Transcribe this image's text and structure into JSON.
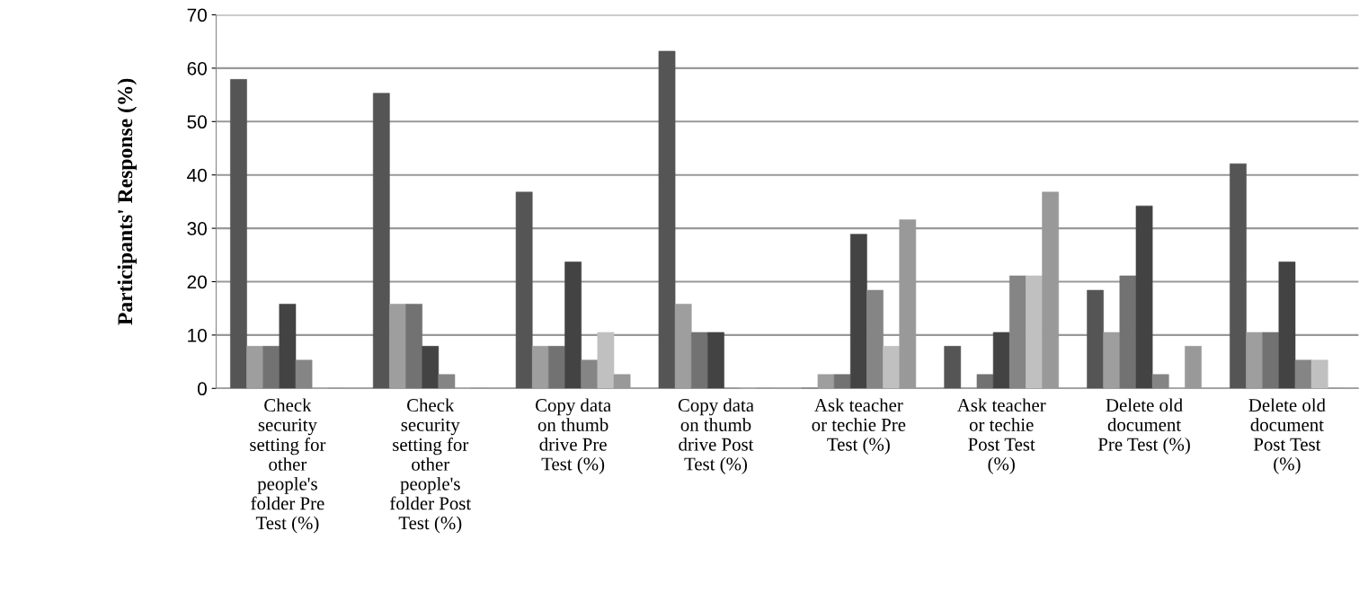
{
  "chart_data": {
    "type": "bar",
    "ylabel": "Participants' Response (%)",
    "categories": [
      "Check\nsecurity\nsetting for\nother\npeople's\nfolder Pre\nTest (%)",
      "Check\nsecurity\nsetting for\nother\npeople's\nfolder Post\nTest (%)",
      "Copy data\non thumb\ndrive Pre\nTest (%)",
      "Copy data\non thumb\ndrive Post\nTest (%)",
      "Ask teacher\nor techie Pre\nTest (%)",
      "Ask teacher\nor techie\nPost Test\n(%)",
      "Delete old\ndocument\nPre Test (%)",
      "Delete old\ndocument\nPost Test\n(%)"
    ],
    "series": [
      {
        "color": "#555555",
        "values": [
          57.9,
          55.3,
          36.8,
          63.2,
          0,
          7.9,
          18.4,
          42.1
        ]
      },
      {
        "color": "#9e9e9e",
        "values": [
          7.9,
          15.8,
          7.9,
          15.8,
          2.6,
          0,
          10.5,
          10.5
        ]
      },
      {
        "color": "#727272",
        "values": [
          7.9,
          15.8,
          7.9,
          10.5,
          2.6,
          2.6,
          21.1,
          10.5
        ]
      },
      {
        "color": "#434343",
        "values": [
          15.8,
          7.9,
          23.7,
          10.5,
          28.9,
          10.5,
          34.2,
          23.7
        ]
      },
      {
        "color": "#858585",
        "values": [
          5.3,
          2.6,
          5.3,
          0,
          18.4,
          21.1,
          2.6,
          5.3
        ]
      },
      {
        "color": "#c0c0c0",
        "values": [
          0,
          0,
          10.5,
          0,
          7.9,
          21.1,
          0,
          5.3
        ]
      },
      {
        "color": "#999999",
        "values": [
          0,
          0,
          2.6,
          0,
          31.6,
          36.8,
          7.9,
          0
        ]
      }
    ],
    "ylim": [
      0,
      70
    ],
    "yticks": [
      0,
      10,
      20,
      30,
      40,
      50,
      60,
      70
    ],
    "grid": "y",
    "legend": false
  }
}
